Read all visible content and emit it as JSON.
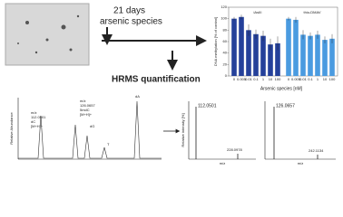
{
  "labels": {
    "time": "21 days",
    "treatment": "arsenic species",
    "method": "HRMS quantification"
  },
  "chart_data": {
    "type": "bar",
    "y_label": "DNA methylation [% of control]",
    "x_label": "Arsenic species [nM]",
    "categories": [
      "0",
      "0.005",
      "0.01",
      "0.1",
      "1",
      "10",
      "100"
    ],
    "series": [
      {
        "name": "iAsIII",
        "color": "#24409a",
        "values": [
          100,
          103,
          80,
          73,
          70,
          55,
          57
        ],
        "errors": [
          3,
          4,
          10,
          8,
          9,
          10,
          12
        ]
      },
      {
        "name": "thio-DMAV",
        "color": "#4a9be0",
        "values": [
          100,
          98,
          72,
          70,
          72,
          63,
          65
        ],
        "errors": [
          3,
          5,
          8,
          6,
          7,
          6,
          8
        ]
      }
    ],
    "ylim": [
      0,
      120
    ],
    "yticks": [
      0,
      20,
      40,
      60,
      80,
      100,
      120
    ]
  },
  "chromatogram": {
    "y_label": "Relative Abundance",
    "peak_dc": [
      "m/z",
      "112.0501",
      "dC",
      "[M+H]+"
    ],
    "peak_mdc": [
      "m/z",
      "126.0657",
      "5mdC",
      "[M+H]+"
    ],
    "peak_dg": "dG",
    "peak_t": "T",
    "peak_da": "dA"
  },
  "spectra": {
    "y_label": "Relative intensity [%]",
    "x_label": "m/z",
    "left": [
      "112.0501",
      "228.0978"
    ],
    "right": [
      "126.0657",
      "242.1134"
    ]
  }
}
